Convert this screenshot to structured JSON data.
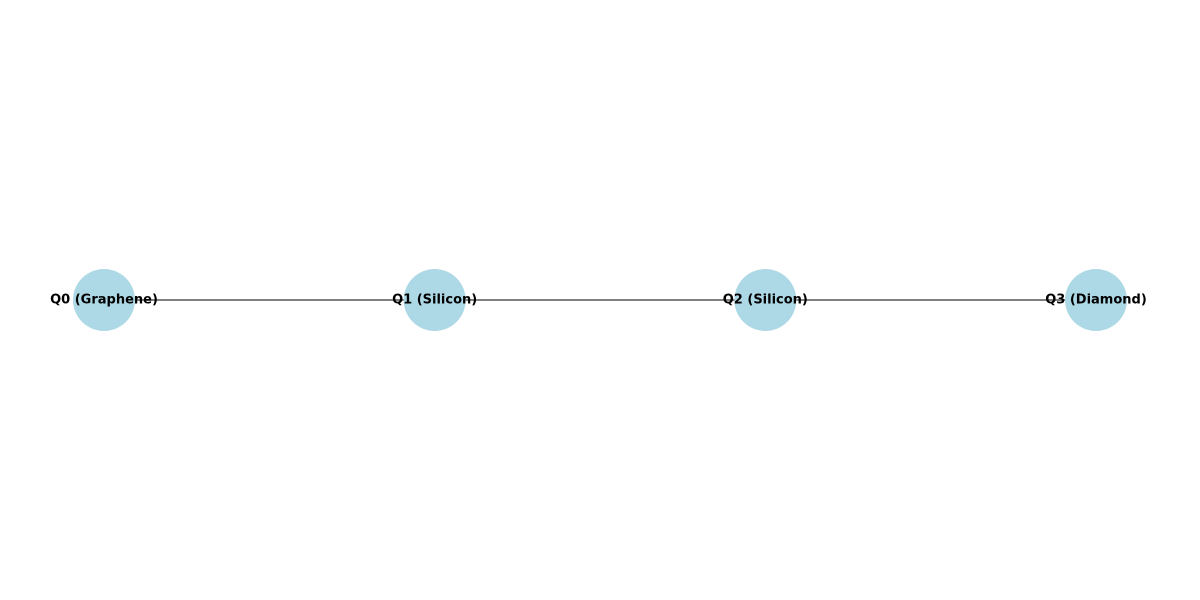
{
  "diagram": {
    "type": "graph",
    "layout": "horizontal-chain",
    "node_color": "#add8e6",
    "edge_color": "#808080",
    "label_color": "#000000",
    "nodes": [
      {
        "id": "Q0",
        "label": "Q0 (Graphene)"
      },
      {
        "id": "Q1",
        "label": "Q1 (Silicon)"
      },
      {
        "id": "Q2",
        "label": "Q2 (Silicon)"
      },
      {
        "id": "Q3",
        "label": "Q3 (Diamond)"
      }
    ],
    "edges": [
      {
        "source": "Q0",
        "target": "Q1"
      },
      {
        "source": "Q1",
        "target": "Q2"
      },
      {
        "source": "Q2",
        "target": "Q3"
      }
    ]
  }
}
